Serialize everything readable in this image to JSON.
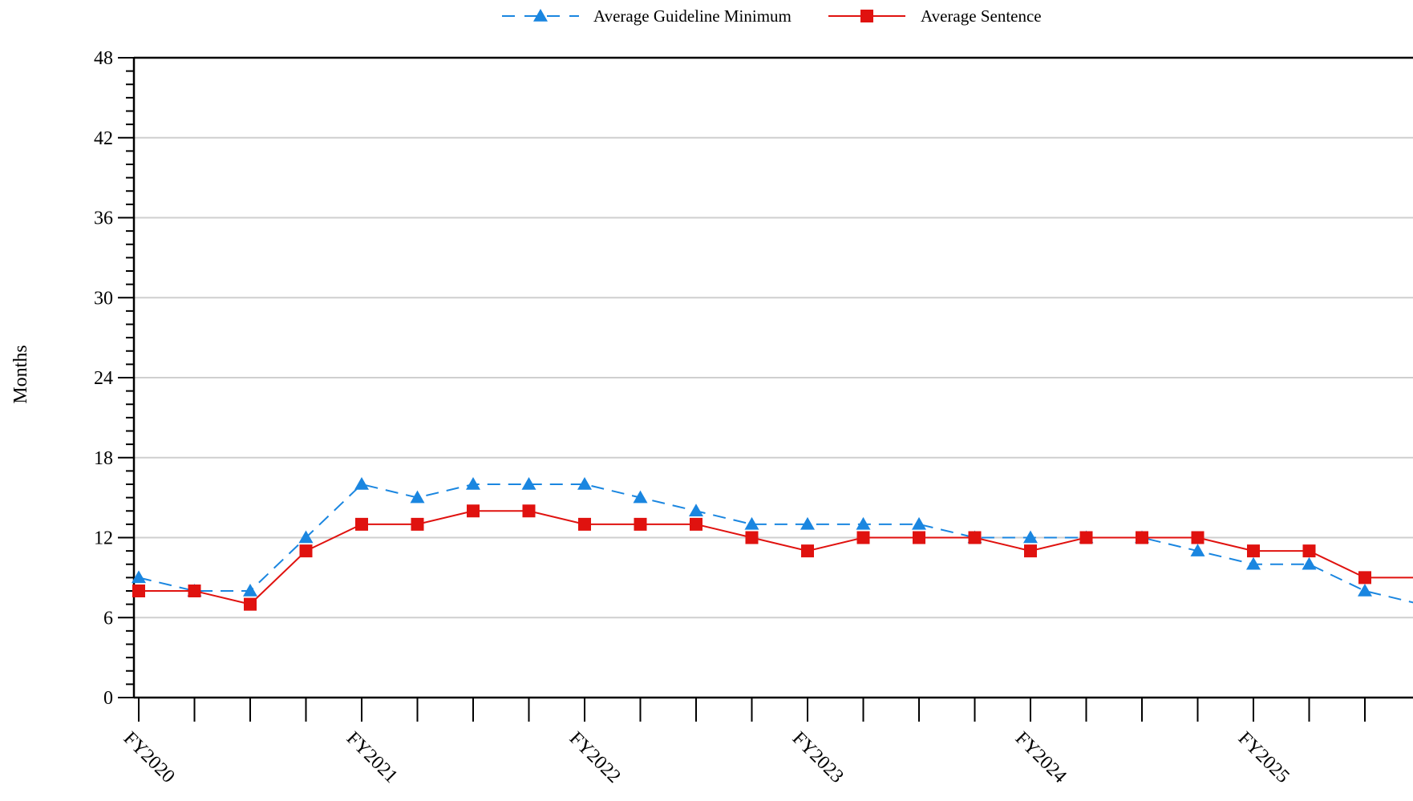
{
  "chart_data": {
    "type": "line",
    "title": "",
    "xlabel": "",
    "ylabel": "Months",
    "ylim": [
      0,
      48
    ],
    "yticks": [
      0,
      6,
      12,
      18,
      24,
      30,
      36,
      42,
      48
    ],
    "grid": true,
    "legend_position": "top-center",
    "x_tick_labels": [
      "FY2020",
      "FY2021",
      "FY2022",
      "FY2023",
      "FY2024",
      "FY2025"
    ],
    "x_tick_label_every": 4,
    "point_count": 24,
    "series": [
      {
        "name": "Average Guideline Minimum",
        "color": "#1a86e0",
        "line_style": "dashed",
        "marker": "triangle",
        "values": [
          9,
          8,
          8,
          12,
          16,
          15,
          16,
          16,
          16,
          15,
          14,
          13,
          13,
          13,
          13,
          12,
          12,
          12,
          12,
          11,
          10,
          10,
          8,
          7
        ]
      },
      {
        "name": "Average Sentence",
        "color": "#e0120f",
        "line_style": "solid",
        "marker": "square",
        "values": [
          8,
          8,
          7,
          11,
          13,
          13,
          14,
          14,
          13,
          13,
          13,
          12,
          11,
          12,
          12,
          12,
          11,
          12,
          12,
          12,
          11,
          11,
          9,
          9
        ]
      }
    ]
  }
}
